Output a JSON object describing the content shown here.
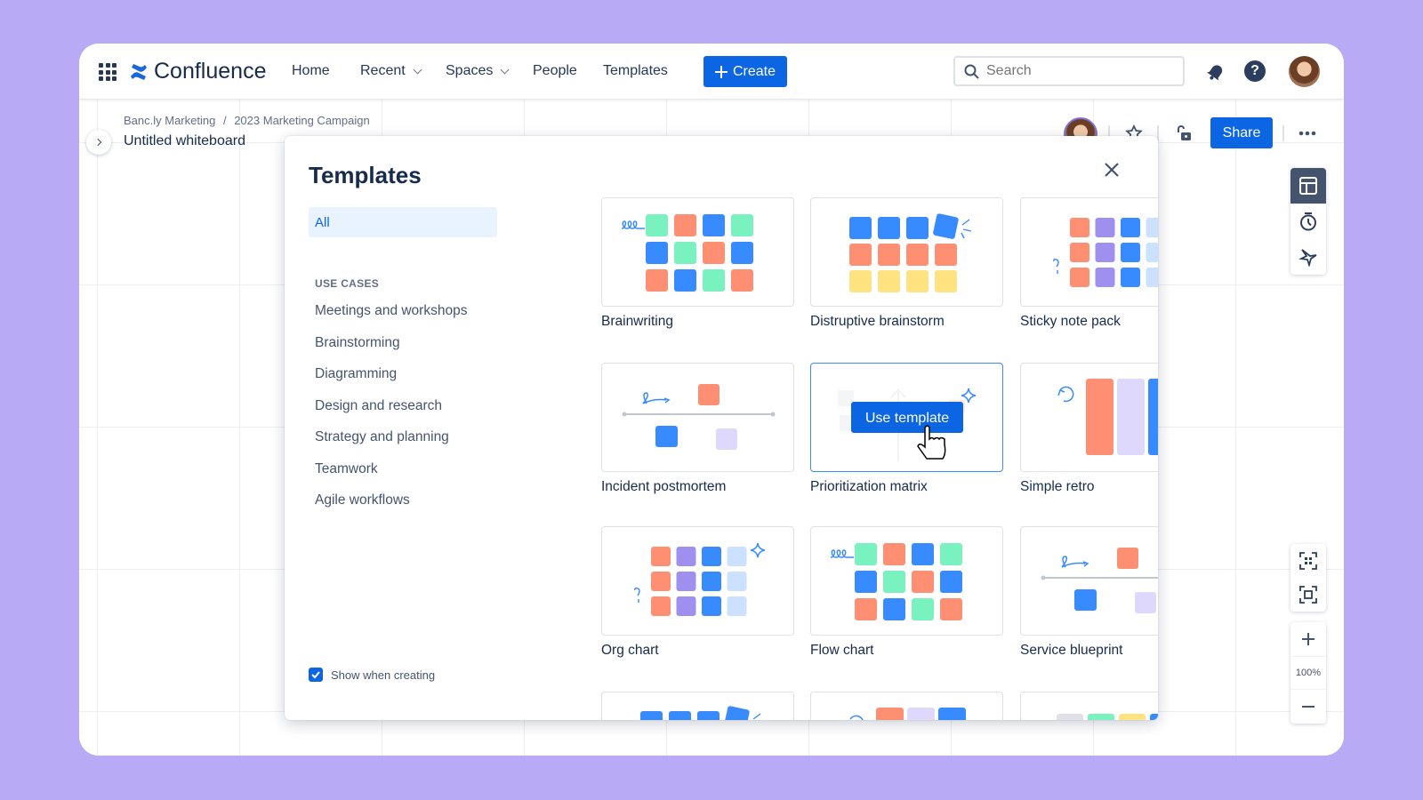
{
  "nav": {
    "app_name": "Confluence",
    "items": [
      {
        "label": "Home",
        "dropdown": false
      },
      {
        "label": "Recent",
        "dropdown": true
      },
      {
        "label": "Spaces",
        "dropdown": true
      },
      {
        "label": "People",
        "dropdown": false
      },
      {
        "label": "Templates",
        "dropdown": false
      }
    ],
    "create_label": "Create",
    "search_placeholder": "Search",
    "icons": [
      "apps-grid-icon",
      "confluence-logo-icon",
      "bell-icon",
      "help-icon",
      "avatar"
    ]
  },
  "page": {
    "breadcrumb": [
      "Banc.ly Marketing",
      "2023 Marketing Campaign"
    ],
    "breadcrumb_separator": "/",
    "title": "Untitled whiteboard",
    "share_label": "Share"
  },
  "zoom": {
    "level": "100%"
  },
  "modal": {
    "title": "Templates",
    "all_label": "All",
    "section_heading": "USE CASES",
    "categories": [
      "Meetings and workshops",
      "Brainstorming",
      "Diagramming",
      "Design and research",
      "Strategy and planning",
      "Teamwork",
      "Agile workflows"
    ],
    "show_when_creating": {
      "label": "Show when creating",
      "checked": true
    },
    "use_template_label": "Use template",
    "templates": [
      {
        "name": "Brainwriting",
        "illustration": "grid-scribble"
      },
      {
        "name": "Distruptive brainstorm",
        "illustration": "grid-burst"
      },
      {
        "name": "Sticky note pack",
        "illustration": "grid-sparkle"
      },
      {
        "name": "Incident postmortem",
        "illustration": "timeline"
      },
      {
        "name": "Prioritization matrix",
        "illustration": "matrix",
        "hovered": true
      },
      {
        "name": "Simple retro",
        "illustration": "columns"
      },
      {
        "name": "Org chart",
        "illustration": "grid-sparkle"
      },
      {
        "name": "Flow chart",
        "illustration": "grid-scribble"
      },
      {
        "name": "Service blueprint",
        "illustration": "timeline"
      },
      {
        "name": "",
        "illustration": "row-burst"
      },
      {
        "name": "",
        "illustration": "row-columns"
      },
      {
        "name": "",
        "illustration": "row-kanban"
      }
    ]
  },
  "colors": {
    "accent": "#0c66e4",
    "orange": "#ff8f73",
    "blue": "#388bff",
    "green": "#79f2c0",
    "purple": "#9f8fef",
    "lightblue": "#cce0ff",
    "yellow": "#ffe380",
    "lavender": "#dfd8fd",
    "background": "#b8aaf4"
  }
}
